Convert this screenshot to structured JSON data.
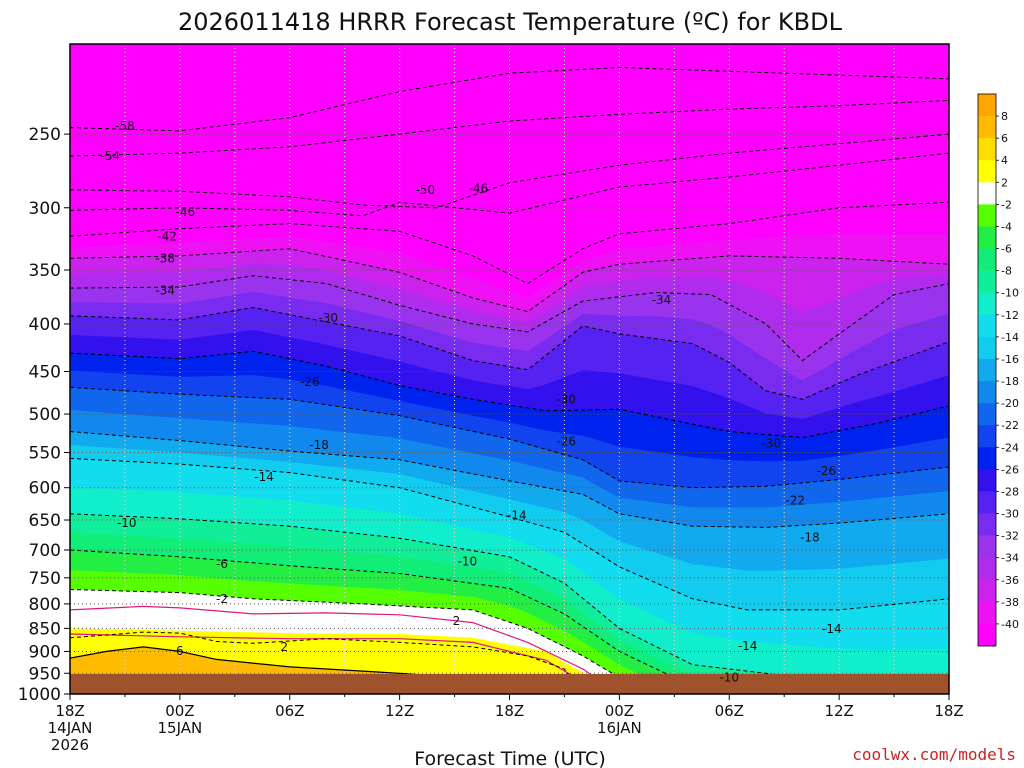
{
  "chart_data": {
    "type": "contour",
    "title": "2026011418 HRRR Forecast Temperature (ºC) for KBDL",
    "xlabel": "Forecast Time (UTC)",
    "ylabel": "",
    "y_axis": "pressure (hPa), log scale, inverted",
    "ylim": [
      1000,
      200
    ],
    "xlim_hours": [
      0,
      48
    ],
    "grid": true,
    "legend": "colorbar right",
    "y_ticks": [
      250,
      300,
      350,
      400,
      450,
      500,
      550,
      600,
      650,
      700,
      750,
      800,
      850,
      900,
      950,
      1000
    ],
    "x_ticks": [
      {
        "hour": 0,
        "lines": [
          "18Z",
          "14JAN",
          "2026"
        ]
      },
      {
        "hour": 6,
        "lines": [
          "00Z",
          "15JAN"
        ]
      },
      {
        "hour": 12,
        "lines": [
          "06Z"
        ]
      },
      {
        "hour": 18,
        "lines": [
          "12Z"
        ]
      },
      {
        "hour": 24,
        "lines": [
          "18Z"
        ]
      },
      {
        "hour": 30,
        "lines": [
          "00Z",
          "16JAN"
        ]
      },
      {
        "hour": 36,
        "lines": [
          "06Z"
        ]
      },
      {
        "hour": 42,
        "lines": [
          "12Z"
        ]
      },
      {
        "hour": 48,
        "lines": [
          "18Z"
        ]
      }
    ],
    "colorbar": {
      "levels": [
        -40,
        -38,
        -36,
        -34,
        -32,
        -30,
        -28,
        -26,
        -24,
        -22,
        -20,
        -18,
        -16,
        -14,
        -12,
        -10,
        -8,
        -6,
        -4,
        -2,
        2,
        4,
        6,
        8
      ],
      "colors": [
        "#ff00ff",
        "#ee11f4",
        "#cc22ee",
        "#b12bee",
        "#9933ee",
        "#7a2bf0",
        "#5522f2",
        "#3311ee",
        "#0022ee",
        "#1144ee",
        "#1166ee",
        "#1188ee",
        "#11aaee",
        "#11ccee",
        "#11ddee",
        "#11eecc",
        "#11ee99",
        "#11ee77",
        "#22ee44",
        "#55ff00",
        "#ffffff",
        "#ffff00",
        "#ffdd00",
        "#ffbb00",
        "#ffa500"
      ]
    },
    "isotherms": [
      {
        "value": -58,
        "points": [
          [
            0,
            246
          ],
          [
            6,
            248
          ],
          [
            12,
            240
          ],
          [
            18,
            225
          ],
          [
            24,
            215
          ],
          [
            30,
            212
          ],
          [
            36,
            214
          ],
          [
            42,
            216
          ],
          [
            48,
            218
          ]
        ]
      },
      {
        "value": -54,
        "points": [
          [
            0,
            264
          ],
          [
            6,
            262
          ],
          [
            12,
            258
          ],
          [
            18,
            250
          ],
          [
            24,
            242
          ],
          [
            30,
            238
          ],
          [
            36,
            235
          ],
          [
            42,
            233
          ],
          [
            48,
            230
          ]
        ]
      },
      {
        "value": -50,
        "points": [
          [
            0,
            287
          ],
          [
            6,
            288
          ],
          [
            12,
            292
          ],
          [
            16,
            298
          ],
          [
            20,
            300
          ],
          [
            24,
            282
          ],
          [
            30,
            270
          ],
          [
            36,
            262
          ],
          [
            42,
            256
          ],
          [
            48,
            250
          ]
        ]
      },
      {
        "value": -46,
        "points": [
          [
            0,
            302
          ],
          [
            6,
            300
          ],
          [
            12,
            302
          ],
          [
            16,
            306
          ],
          [
            18,
            296
          ],
          [
            24,
            304
          ],
          [
            30,
            285
          ],
          [
            36,
            278
          ],
          [
            42,
            270
          ],
          [
            48,
            262
          ]
        ]
      },
      {
        "value": -42,
        "points": [
          [
            0,
            322
          ],
          [
            6,
            316
          ],
          [
            12,
            312
          ],
          [
            18,
            318
          ],
          [
            22,
            338
          ],
          [
            25,
            362
          ],
          [
            28,
            332
          ],
          [
            30,
            320
          ],
          [
            36,
            312
          ],
          [
            42,
            300
          ],
          [
            48,
            296
          ]
        ]
      },
      {
        "value": -38,
        "points": [
          [
            0,
            340
          ],
          [
            6,
            338
          ],
          [
            12,
            332
          ],
          [
            18,
            352
          ],
          [
            22,
            375
          ],
          [
            25,
            388
          ],
          [
            28,
            352
          ],
          [
            30,
            345
          ],
          [
            36,
            338
          ],
          [
            42,
            340
          ],
          [
            48,
            345
          ]
        ]
      },
      {
        "value": -34,
        "points": [
          [
            0,
            366
          ],
          [
            6,
            365
          ],
          [
            10,
            355
          ],
          [
            14,
            362
          ],
          [
            18,
            382
          ],
          [
            22,
            400
          ],
          [
            25,
            408
          ],
          [
            28,
            378
          ],
          [
            32,
            370
          ],
          [
            35,
            372
          ],
          [
            38,
            400
          ],
          [
            40,
            438
          ],
          [
            42,
            410
          ],
          [
            45,
            372
          ],
          [
            48,
            362
          ]
        ]
      },
      {
        "value": -30,
        "points": [
          [
            0,
            392
          ],
          [
            6,
            396
          ],
          [
            10,
            384
          ],
          [
            14,
            398
          ],
          [
            18,
            412
          ],
          [
            22,
            438
          ],
          [
            25,
            448
          ],
          [
            28,
            402
          ],
          [
            30,
            410
          ],
          [
            34,
            420
          ],
          [
            36,
            440
          ],
          [
            38,
            472
          ],
          [
            40,
            482
          ],
          [
            43,
            454
          ],
          [
            48,
            418
          ]
        ]
      },
      {
        "value": -26,
        "points": [
          [
            0,
            430
          ],
          [
            6,
            436
          ],
          [
            10,
            428
          ],
          [
            14,
            444
          ],
          [
            18,
            466
          ],
          [
            22,
            482
          ],
          [
            26,
            496
          ],
          [
            30,
            494
          ],
          [
            33,
            508
          ],
          [
            36,
            522
          ],
          [
            40,
            530
          ],
          [
            44,
            512
          ],
          [
            48,
            490
          ]
        ]
      },
      {
        "value": -22,
        "points": [
          [
            0,
            468
          ],
          [
            6,
            476
          ],
          [
            12,
            482
          ],
          [
            18,
            502
          ],
          [
            24,
            532
          ],
          [
            28,
            560
          ],
          [
            30,
            590
          ],
          [
            34,
            600
          ],
          [
            38,
            598
          ],
          [
            42,
            588
          ],
          [
            48,
            570
          ]
        ]
      },
      {
        "value": -18,
        "points": [
          [
            0,
            522
          ],
          [
            6,
            534
          ],
          [
            12,
            548
          ],
          [
            18,
            560
          ],
          [
            24,
            590
          ],
          [
            28,
            610
          ],
          [
            30,
            640
          ],
          [
            34,
            660
          ],
          [
            38,
            662
          ],
          [
            42,
            655
          ],
          [
            48,
            640
          ]
        ]
      },
      {
        "value": -14,
        "points": [
          [
            0,
            558
          ],
          [
            6,
            566
          ],
          [
            12,
            578
          ],
          [
            18,
            600
          ],
          [
            24,
            645
          ],
          [
            27,
            670
          ],
          [
            30,
            730
          ],
          [
            34,
            790
          ],
          [
            37,
            812
          ],
          [
            42,
            812
          ],
          [
            48,
            790
          ]
        ]
      },
      {
        "value": -10,
        "points": [
          [
            0,
            640
          ],
          [
            6,
            648
          ],
          [
            12,
            660
          ],
          [
            18,
            680
          ],
          [
            24,
            712
          ],
          [
            27,
            760
          ],
          [
            30,
            850
          ],
          [
            34,
            930
          ],
          [
            38,
            950
          ],
          [
            44,
            990
          ],
          [
            48,
            1000
          ]
        ]
      },
      {
        "value": -6,
        "points": [
          [
            0,
            700
          ],
          [
            6,
            712
          ],
          [
            12,
            728
          ],
          [
            18,
            742
          ],
          [
            24,
            770
          ],
          [
            27,
            820
          ],
          [
            30,
            900
          ],
          [
            33,
            960
          ],
          [
            35,
            1000
          ]
        ]
      },
      {
        "value": -2,
        "points": [
          [
            0,
            772
          ],
          [
            6,
            778
          ],
          [
            10,
            790
          ],
          [
            16,
            800
          ],
          [
            22,
            812
          ],
          [
            25,
            850
          ],
          [
            28,
            910
          ],
          [
            30,
            960
          ],
          [
            32,
            1000
          ]
        ]
      },
      {
        "value": 2,
        "points": [
          [
            0,
            850
          ],
          [
            6,
            855
          ],
          [
            12,
            860
          ],
          [
            18,
            862
          ],
          [
            22,
            870
          ],
          [
            26,
            900
          ],
          [
            28,
            948
          ],
          [
            30,
            1000
          ]
        ]
      }
    ],
    "labels": [
      {
        "text": "-58",
        "h": 3,
        "p": 245
      },
      {
        "text": "-54",
        "h": 2.2,
        "p": 264
      },
      {
        "text": "-50",
        "h": 19.4,
        "p": 287
      },
      {
        "text": "-46",
        "h": 22.3,
        "p": 286
      },
      {
        "text": "-46",
        "h": 6.3,
        "p": 303
      },
      {
        "text": "-42",
        "h": 5.3,
        "p": 322
      },
      {
        "text": "-38",
        "h": 5.2,
        "p": 340
      },
      {
        "text": "-34",
        "h": 5.2,
        "p": 368
      },
      {
        "text": "-34",
        "h": 32.3,
        "p": 377
      },
      {
        "text": "-30",
        "h": 14.1,
        "p": 394
      },
      {
        "text": "-30",
        "h": 27.1,
        "p": 482
      },
      {
        "text": "-30",
        "h": 38.3,
        "p": 538
      },
      {
        "text": "-26",
        "h": 13.1,
        "p": 462
      },
      {
        "text": "-26",
        "h": 27.1,
        "p": 535
      },
      {
        "text": "-26",
        "h": 41.3,
        "p": 576
      },
      {
        "text": "-22",
        "h": 39.6,
        "p": 619
      },
      {
        "text": "-18",
        "h": 13.6,
        "p": 540
      },
      {
        "text": "-18",
        "h": 40.4,
        "p": 679
      },
      {
        "text": "-14",
        "h": 10.6,
        "p": 584
      },
      {
        "text": "-14",
        "h": 24.4,
        "p": 643
      },
      {
        "text": "-14",
        "h": 41.6,
        "p": 851
      },
      {
        "text": "-14",
        "h": 37.0,
        "p": 888
      },
      {
        "text": "-10",
        "h": 3.1,
        "p": 655
      },
      {
        "text": "-10",
        "h": 21.7,
        "p": 720
      },
      {
        "text": "-10",
        "h": 36.0,
        "p": 960
      },
      {
        "text": "-6",
        "h": 8.3,
        "p": 725
      },
      {
        "text": "-2",
        "h": 8.3,
        "p": 790
      },
      {
        "text": "2",
        "h": 21.1,
        "p": 835
      },
      {
        "text": "2",
        "h": 11.7,
        "p": 890
      },
      {
        "text": "6",
        "h": 6.0,
        "p": 899
      }
    ]
  },
  "credit": "coolwx.com/models"
}
